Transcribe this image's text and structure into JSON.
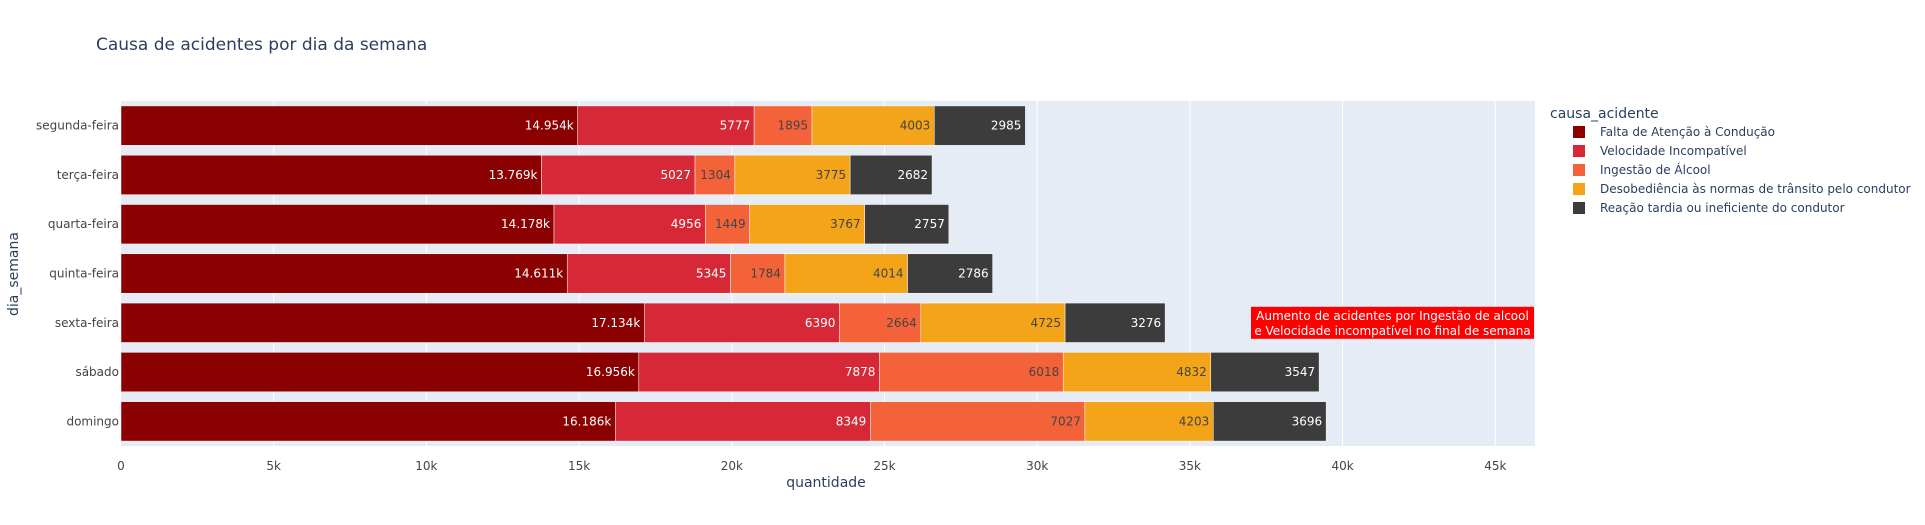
{
  "chart_data": {
    "type": "bar",
    "orientation": "horizontal",
    "barmode": "stack",
    "title": "Causa de acidentes por dia da semana",
    "xlabel": "quantidade",
    "ylabel": "dia_semana",
    "xlim": [
      0,
      46300
    ],
    "x_ticks": [
      0,
      5000,
      10000,
      15000,
      20000,
      25000,
      30000,
      35000,
      40000,
      45000
    ],
    "x_tick_labels": [
      "0",
      "5k",
      "10k",
      "15k",
      "20k",
      "25k",
      "30k",
      "35k",
      "40k",
      "45k"
    ],
    "grid": true,
    "categories": [
      "segunda-feira",
      "terça-feira",
      "quarta-feira",
      "quinta-feira",
      "sexta-feira",
      "sábado",
      "domingo"
    ],
    "legend": {
      "title": "causa_acidente",
      "placement": "right"
    },
    "series": [
      {
        "name": "Falta de Atenção à Condução",
        "color": "#8B0000",
        "values": [
          14954,
          13769,
          14178,
          14611,
          17134,
          16956,
          16186
        ],
        "labels": [
          "14.954k",
          "13.769k",
          "14.178k",
          "14.611k",
          "17.134k",
          "16.956k",
          "16.186k"
        ],
        "label_color": "#ffffff"
      },
      {
        "name": "Velocidade Incompatível",
        "color": "#D62836",
        "values": [
          5777,
          5027,
          4956,
          5345,
          6390,
          7878,
          8349
        ],
        "labels": [
          "5777",
          "5027",
          "4956",
          "5345",
          "6390",
          "7878",
          "8349"
        ],
        "label_color": "#ffffff"
      },
      {
        "name": "Ingestão de Álcool",
        "color": "#F4623A",
        "values": [
          1895,
          1304,
          1449,
          1784,
          2664,
          6018,
          7027
        ],
        "labels": [
          "1895",
          "1304",
          "1449",
          "1784",
          "2664",
          "6018",
          "7027"
        ],
        "label_color": "#444444"
      },
      {
        "name": "Desobediência às normas de trânsito pelo condutor",
        "color": "#F4A418",
        "values": [
          4003,
          3775,
          3767,
          4014,
          4725,
          4832,
          4203
        ],
        "labels": [
          "4003",
          "3775",
          "3767",
          "4014",
          "4725",
          "4832",
          "4203"
        ],
        "label_color": "#444444"
      },
      {
        "name": "Reação tardia ou ineficiente do condutor",
        "color": "#3C3C3C",
        "values": [
          2985,
          2682,
          2757,
          2786,
          3276,
          3547,
          3696
        ],
        "labels": [
          "2985",
          "2682",
          "2757",
          "2786",
          "3276",
          "3547",
          "3696"
        ],
        "label_color": "#ffffff"
      }
    ],
    "annotation": {
      "lines": [
        "Aumento de acidentes por Ingestão de alcool",
        "e Velocidade incompatível no final de semana"
      ],
      "background": "#FF0000",
      "text_color": "#ffffff",
      "anchor_category": "sexta-feira"
    },
    "colors": {
      "plot_bg": "#E5ECF6",
      "grid": "#ffffff",
      "text": "#444444",
      "title_text": "#2A3F5F"
    }
  }
}
